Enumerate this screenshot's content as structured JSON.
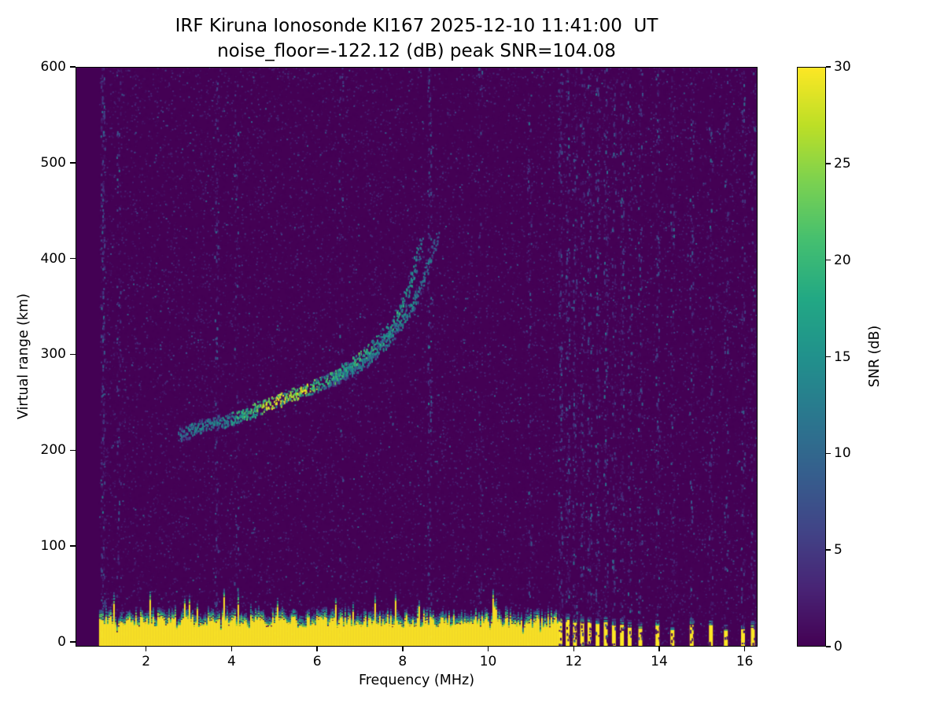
{
  "figure": {
    "station": "KI167",
    "site": "IRF Kiruna Ionosonde",
    "timestamp_ut": "2025-12-10 11:41:00"
  },
  "chart_data": {
    "type": "heatmap",
    "title": "IRF Kiruna Ionosonde KI167 2025-12-10 11:41:00  UT",
    "subtitle": "noise_floor=-122.12 (dB) peak SNR=104.08",
    "xlabel": "Frequency (MHz)",
    "ylabel": "Virtual range (km)",
    "xlim": [
      0.35,
      16.3
    ],
    "ylim": [
      -5,
      600
    ],
    "x_ticks": [
      2,
      4,
      6,
      8,
      10,
      12,
      14,
      16
    ],
    "y_ticks": [
      0,
      100,
      200,
      300,
      400,
      500,
      600
    ],
    "grid": false,
    "noise_floor_db": -122.12,
    "peak_snr_db": 104.08,
    "data_start_mhz": 0.9,
    "colorbar": {
      "label": "SNR (dB)",
      "min": 0,
      "max": 30,
      "ticks": [
        0,
        5,
        10,
        15,
        20,
        25,
        30
      ],
      "position": "right"
    },
    "colormap": {
      "name": "viridis",
      "stops": [
        [
          0.0,
          "#440154"
        ],
        [
          0.1,
          "#482475"
        ],
        [
          0.2,
          "#414487"
        ],
        [
          0.3,
          "#355f8d"
        ],
        [
          0.4,
          "#2a788e"
        ],
        [
          0.5,
          "#21918c"
        ],
        [
          0.6,
          "#22a884"
        ],
        [
          0.7,
          "#44bf70"
        ],
        [
          0.8,
          "#7ad151"
        ],
        [
          0.9,
          "#bddf26"
        ],
        [
          1.0,
          "#fde725"
        ]
      ]
    },
    "features": {
      "background_speckle": {
        "count": 32000,
        "max_snr_db": 10
      },
      "noisy_columns": [
        {
          "f": 0.98,
          "s": 1.0
        },
        {
          "f": 1.35,
          "s": 0.35
        },
        {
          "f": 3.64,
          "s": 0.5
        },
        {
          "f": 4.1,
          "s": 0.25
        },
        {
          "f": 6.55,
          "s": 0.25
        },
        {
          "f": 8.61,
          "s": 0.6
        },
        {
          "f": 9.8,
          "s": 0.25
        },
        {
          "f": 10.95,
          "s": 0.3
        }
      ],
      "ground_clutter": {
        "snr_db": 30,
        "top_km_typical": 25,
        "continuous_range_mhz": [
          0.9,
          11.62
        ],
        "pulses": [
          [
            11.68,
            22,
            0.9
          ],
          [
            11.85,
            20,
            0.7
          ],
          [
            12.02,
            21,
            0.8
          ],
          [
            12.19,
            18,
            0.6
          ],
          [
            12.36,
            19,
            0.7
          ],
          [
            12.55,
            17,
            0.6
          ],
          [
            12.74,
            18,
            0.8
          ],
          [
            12.93,
            16,
            0.5
          ],
          [
            13.12,
            17,
            0.6
          ],
          [
            13.3,
            15,
            0.4
          ],
          [
            13.55,
            16,
            0.5
          ],
          [
            13.95,
            17,
            0.6
          ],
          [
            14.3,
            15,
            0.5
          ],
          [
            14.75,
            16,
            0.5
          ],
          [
            15.2,
            15,
            0.5
          ],
          [
            15.55,
            14,
            0.4
          ],
          [
            15.95,
            15,
            0.5
          ],
          [
            16.18,
            14,
            0.4
          ]
        ]
      },
      "trace_o_mode": {
        "label": "F-region echo (O-mode)",
        "points": [
          [
            2.75,
            216,
            10
          ],
          [
            3.0,
            221,
            13
          ],
          [
            3.3,
            226,
            14
          ],
          [
            3.6,
            229,
            13
          ],
          [
            3.9,
            232,
            15
          ],
          [
            4.2,
            236,
            18
          ],
          [
            4.5,
            242,
            20
          ],
          [
            4.8,
            248,
            26
          ],
          [
            5.0,
            251,
            30
          ],
          [
            5.2,
            255,
            28
          ],
          [
            5.45,
            259,
            24
          ],
          [
            5.7,
            263,
            26
          ],
          [
            5.95,
            268,
            22
          ],
          [
            6.2,
            273,
            20
          ],
          [
            6.45,
            279,
            18
          ],
          [
            6.7,
            287,
            17
          ],
          [
            7.0,
            297,
            20
          ],
          [
            7.3,
            309,
            18
          ],
          [
            7.55,
            321,
            16
          ],
          [
            7.8,
            336,
            18
          ],
          [
            8.0,
            353,
            16
          ],
          [
            8.15,
            372,
            15
          ],
          [
            8.28,
            392,
            14
          ],
          [
            8.38,
            410,
            12
          ],
          [
            8.45,
            424,
            10
          ]
        ]
      },
      "trace_x_mode": {
        "label": "F-region echo (X-mode)",
        "points": [
          [
            6.3,
            272,
            9
          ],
          [
            6.6,
            279,
            10
          ],
          [
            6.9,
            287,
            12
          ],
          [
            7.2,
            297,
            13
          ],
          [
            7.5,
            309,
            14
          ],
          [
            7.75,
            322,
            13
          ],
          [
            8.0,
            337,
            14
          ],
          [
            8.25,
            355,
            13
          ],
          [
            8.45,
            374,
            12
          ],
          [
            8.6,
            394,
            11
          ],
          [
            8.72,
            412,
            10
          ],
          [
            8.82,
            428,
            9
          ]
        ]
      }
    }
  }
}
